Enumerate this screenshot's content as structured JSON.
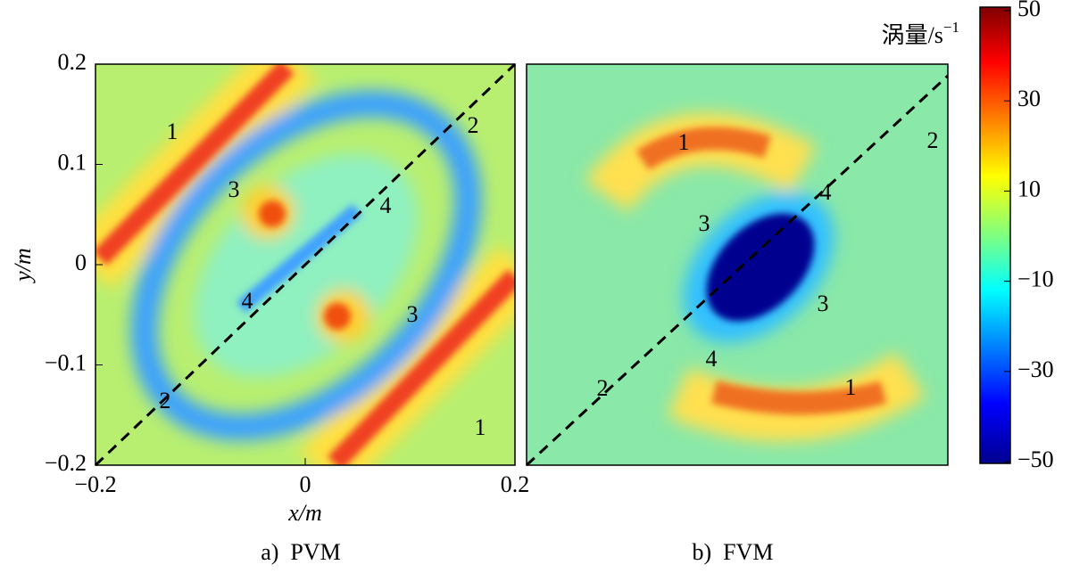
{
  "chart_data": [
    {
      "type": "heatmap",
      "caption": "a)  PVM",
      "xlabel": "x/m",
      "ylabel": "y/m",
      "xlim": [
        -0.2,
        0.2
      ],
      "ylim": [
        -0.2,
        0.2
      ],
      "xticks": [
        {
          "value": -0.2,
          "label": "−0.2"
        },
        0,
        0.2
      ],
      "yticks": [
        {
          "value": -0.2,
          "label": "−0.2"
        },
        {
          "value": -0.1,
          "label": "−0.1"
        },
        0,
        0.1,
        0.2
      ],
      "annotations": [
        "1",
        "2",
        "3",
        "4",
        "4",
        "3",
        "2",
        "1"
      ]
    },
    {
      "type": "heatmap",
      "caption": "b)  FVM",
      "annotations": [
        "1",
        "2",
        "4",
        "3",
        "3",
        "4",
        "2",
        "1"
      ]
    }
  ],
  "colorbar": {
    "label": "涡量/s",
    "label_sup": "−1",
    "clim": [
      -50,
      50
    ],
    "ticks": [
      50,
      30,
      10,
      {
        "value": -10,
        "label": "−10"
      },
      {
        "value": -30,
        "label": "−30"
      },
      {
        "value": -50,
        "label": "−50"
      }
    ]
  }
}
